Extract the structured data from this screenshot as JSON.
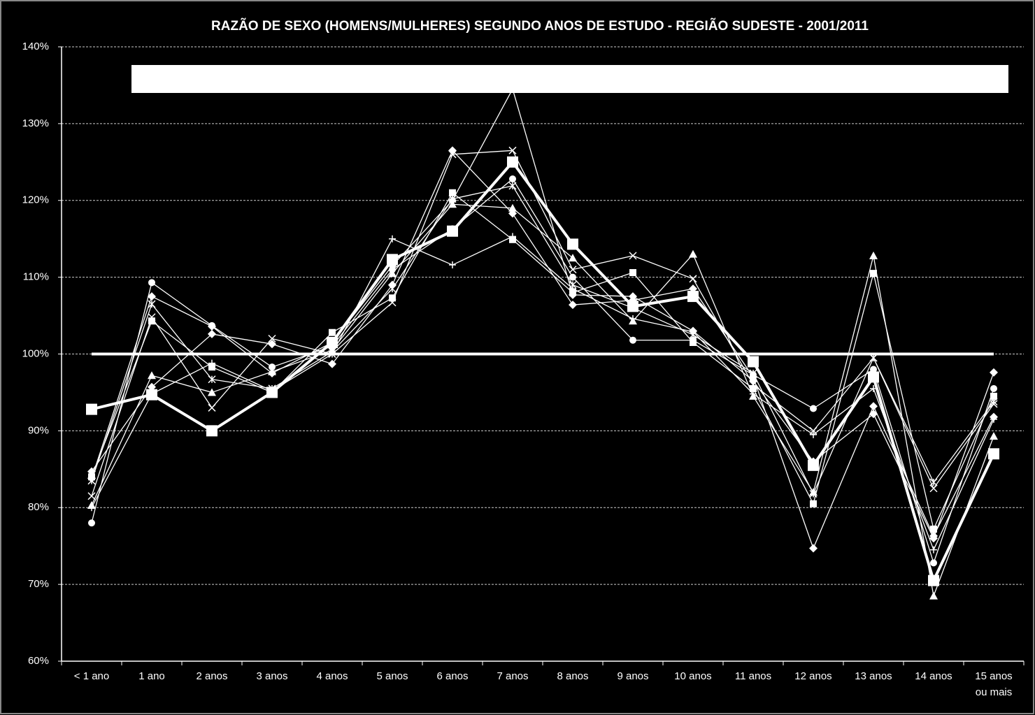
{
  "chart_data": {
    "type": "line",
    "title": "RAZÃO DE SEXO (HOMENS/MULHERES) SEGUNDO ANOS DE ESTUDO - REGIÃO SUDESTE - 2001/2011",
    "categories": [
      "< 1 ano",
      "1 ano",
      "2 anos",
      "3 anos",
      "4 anos",
      "5 anos",
      "6 anos",
      "7 anos",
      "8 anos",
      "9 anos",
      "10 anos",
      "11 anos",
      "12 anos",
      "13 anos",
      "14 anos",
      "15 anos\nou mais"
    ],
    "ylim": [
      60,
      140
    ],
    "yticks": [
      {
        "value": 60,
        "label": "60%"
      },
      {
        "value": 70,
        "label": "70%"
      },
      {
        "value": 80,
        "label": "80%"
      },
      {
        "value": 90,
        "label": "90%"
      },
      {
        "value": 100,
        "label": "100%"
      },
      {
        "value": 110,
        "label": "110%"
      },
      {
        "value": 120,
        "label": "120%"
      },
      {
        "value": 130,
        "label": "130%"
      },
      {
        "value": 140,
        "label": "140%"
      }
    ],
    "grid": true,
    "series": [
      {
        "color": "#ffffff",
        "marker": "none",
        "emphasis": true,
        "values": [
          100,
          100,
          100,
          100,
          100,
          100,
          100,
          100,
          100,
          100,
          100,
          100,
          100,
          100,
          100,
          100
        ]
      },
      {
        "color": "#ffffff",
        "marker": "circle",
        "values": [
          78.0,
          109.3,
          103.7,
          98.3,
          101.0,
          111.0,
          116.3,
          122.8,
          110.0,
          101.8,
          101.8,
          97.3,
          92.9,
          98.0,
          72.8,
          95.5
        ]
      },
      {
        "color": "#ffffff",
        "marker": "diamond",
        "values": [
          84.7,
          95.7,
          102.6,
          101.3,
          98.7,
          109.0,
          126.5,
          118.3,
          106.4,
          107.0,
          108.5,
          97.0,
          74.7,
          93.2,
          76.3,
          91.8
        ]
      },
      {
        "color": "#ffffff",
        "marker": "triangle",
        "values": [
          80.3,
          97.2,
          95.0,
          97.7,
          100.5,
          110.5,
          119.5,
          119.0,
          112.5,
          104.3,
          113.0,
          94.5,
          82.0,
          112.8,
          68.5,
          89.3
        ]
      },
      {
        "color": "#ffffff",
        "marker": "x",
        "values": [
          81.5,
          104.8,
          93.0,
          102.0,
          100.0,
          106.7,
          126.0,
          126.5,
          111.0,
          112.8,
          109.8,
          96.0,
          90.0,
          99.5,
          82.5,
          93.5
        ]
      },
      {
        "color": "#ffffff",
        "marker": "square",
        "values": [
          84.0,
          104.3,
          98.3,
          95.0,
          102.8,
          107.3,
          121.0,
          114.9,
          108.0,
          110.6,
          101.5,
          95.5,
          80.5,
          110.5,
          77.2,
          94.5
        ]
      },
      {
        "color": "#ffffff",
        "marker": "plus",
        "values": [
          80.0,
          94.8,
          98.8,
          95.2,
          100.0,
          115.0,
          111.6,
          115.3,
          108.5,
          104.6,
          102.9,
          94.8,
          89.5,
          95.5,
          74.5,
          91.5
        ]
      },
      {
        "color": "#ffffff",
        "marker": "star",
        "values": [
          83.5,
          106.5,
          96.7,
          95.5,
          100.3,
          108.5,
          120.2,
          121.9,
          109.0,
          106.0,
          102.5,
          97.5,
          81.8,
          99.5,
          83.3,
          93.8
        ]
      },
      {
        "color": "#ffffff",
        "marker": "diamond",
        "values": [
          83.8,
          107.5,
          103.6,
          97.5,
          101.5,
          111.5,
          120.0,
          134.5,
          107.7,
          107.5,
          103.0,
          96.5,
          86.0,
          92.2,
          76.0,
          97.6
        ]
      },
      {
        "color": "#ffffff",
        "marker": "square",
        "emphasis": true,
        "values": [
          92.8,
          94.7,
          90.0,
          95.0,
          101.5,
          112.3,
          116.0,
          125.0,
          114.3,
          106.2,
          107.5,
          99.0,
          85.5,
          97.0,
          70.5,
          87.0
        ]
      }
    ]
  }
}
